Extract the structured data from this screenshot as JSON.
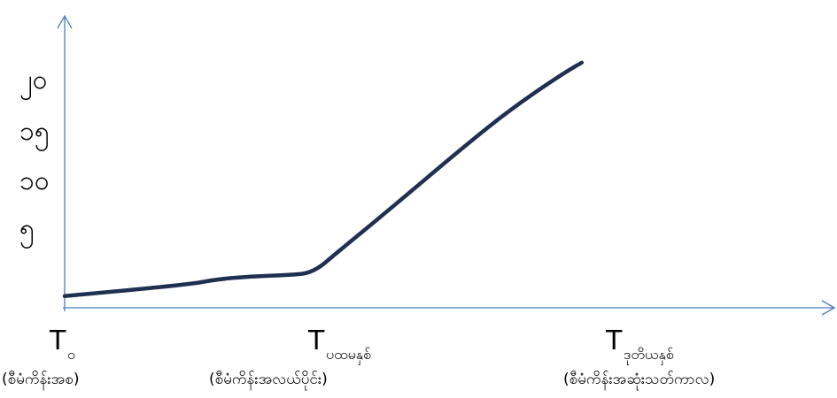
{
  "chart_data": {
    "type": "line",
    "title": "",
    "xlabel": "",
    "ylabel": "",
    "y_tick_labels": [
      "၅",
      "၁၀",
      "၁၅",
      "၂၀"
    ],
    "x_tick_labels": [
      {
        "main": "T",
        "sub": "၀",
        "note": "(စီမံကိန်းအစ)"
      },
      {
        "main": "T",
        "sub": "ပထမနှစ်",
        "note": "(စီမံကိန်းအလယ်ပိုင်း)"
      },
      {
        "main": "T",
        "sub": "ဒုတိယနှစ်",
        "note": "(စီမံကိန်းအဆုံးသတ်ကာလ)"
      }
    ],
    "x": [
      0,
      0.5,
      0.6,
      0.75,
      0.9,
      1.0,
      1.1,
      1.3,
      1.6,
      1.8,
      2.0,
      2.08
    ],
    "series": [
      {
        "values": [
          1.0,
          2.0,
          2.4,
          2.7,
          2.8,
          3.0,
          4.8,
          8.3,
          13.7,
          17.1,
          20.0,
          21.0
        ],
        "color": "#1f3050"
      }
    ],
    "xlim": [
      0,
      3.05
    ],
    "ylim": [
      0,
      25
    ],
    "axis_color": "#4a7ebb",
    "grid": false,
    "legend": "none"
  }
}
